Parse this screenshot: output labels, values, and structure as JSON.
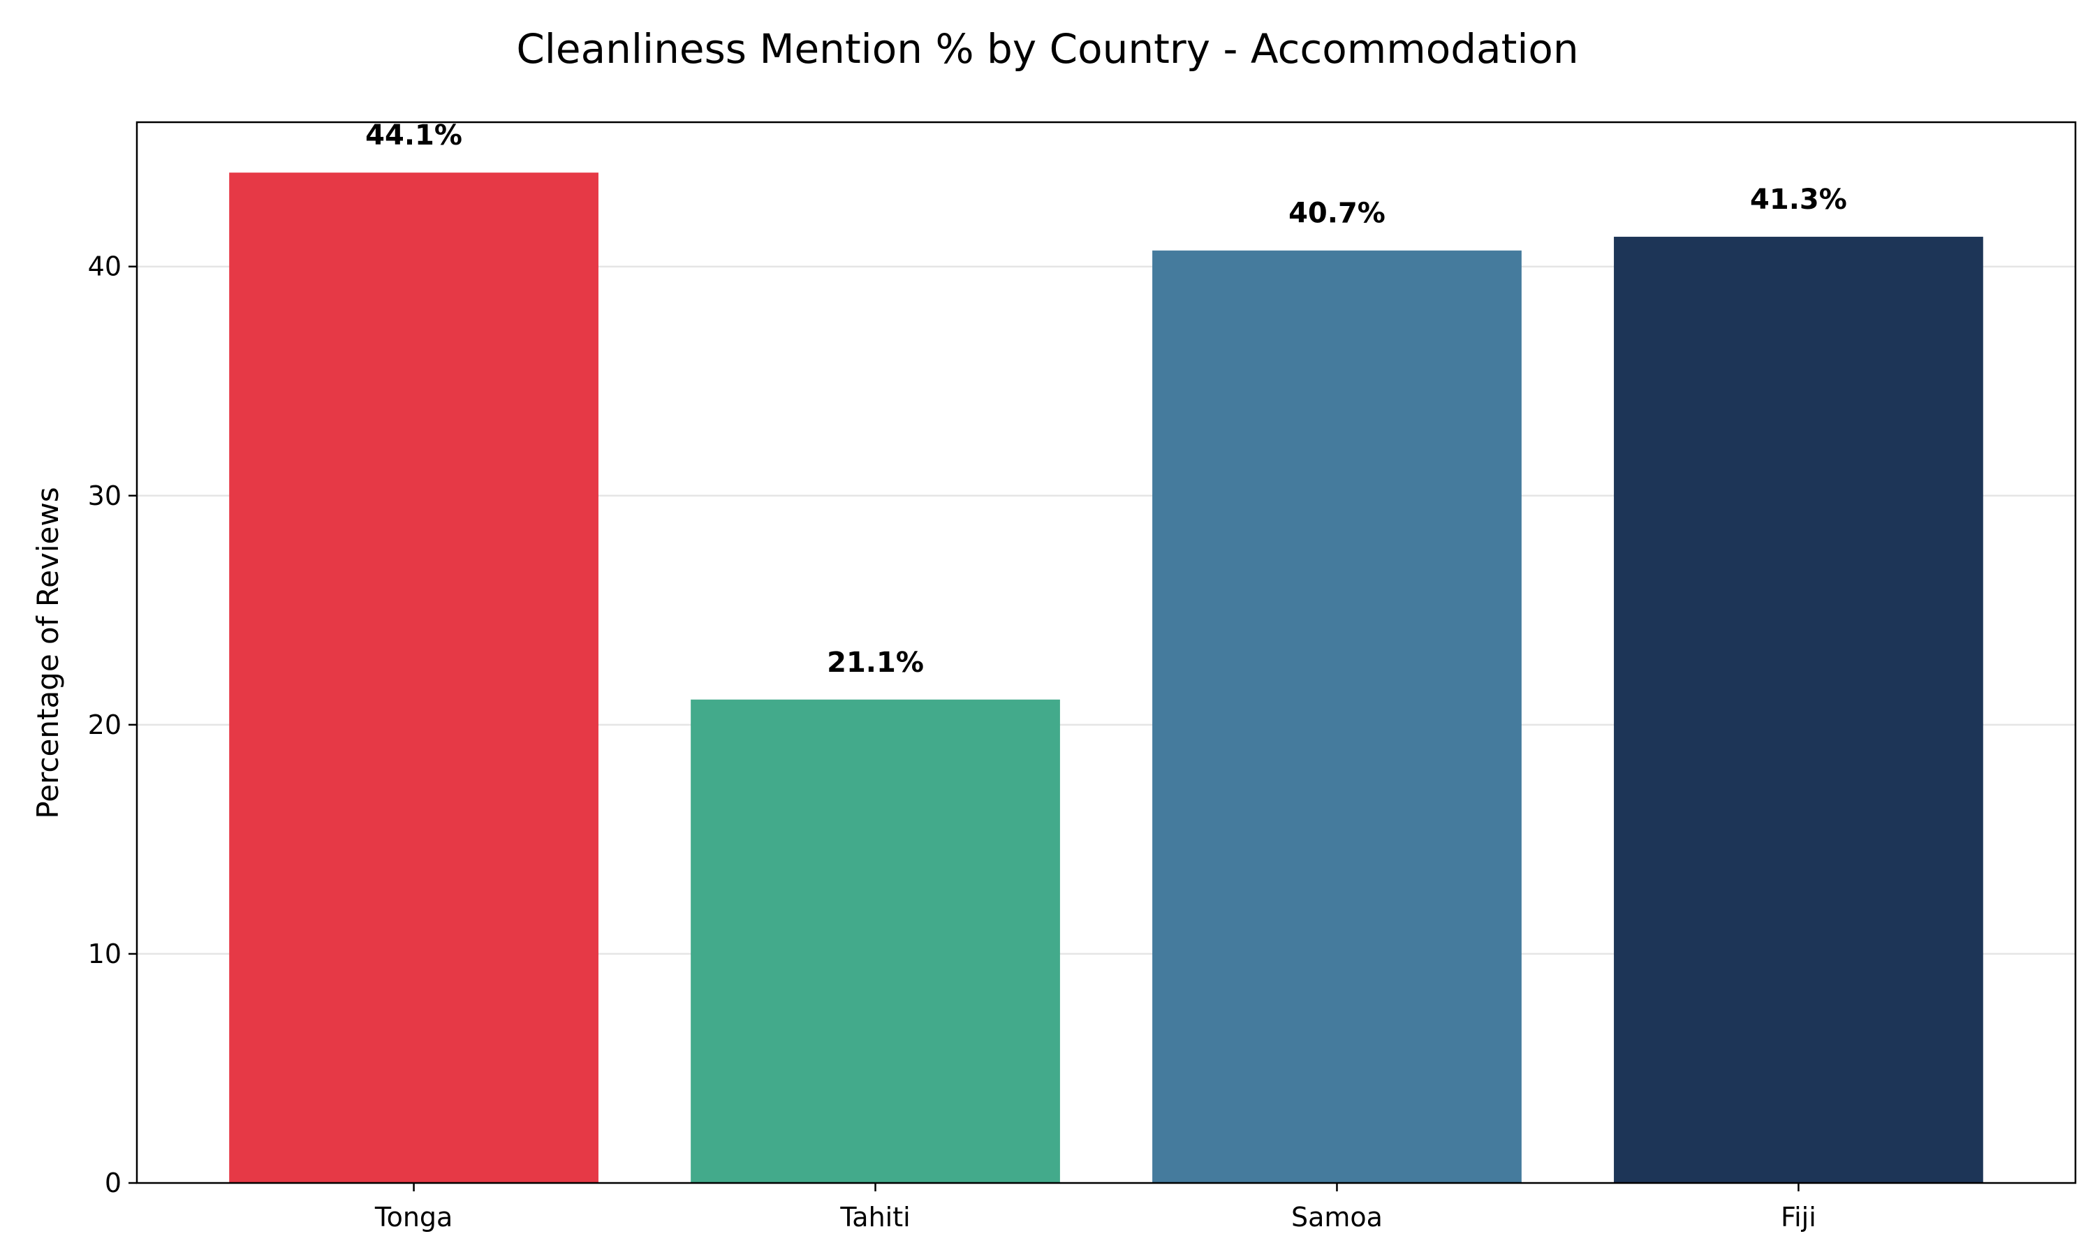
{
  "chart_data": {
    "type": "bar",
    "title": "Cleanliness Mention % by Country - Accommodation",
    "xlabel": "",
    "ylabel": "Percentage of Reviews",
    "categories": [
      "Tonga",
      "Tahiti",
      "Samoa",
      "Fiji"
    ],
    "values": [
      44.1,
      21.1,
      40.7,
      41.3
    ],
    "value_labels": [
      "44.1%",
      "21.1%",
      "40.7%",
      "41.3%"
    ],
    "colors": [
      "#e63946",
      "#43aa8b",
      "#457b9d",
      "#1d3557"
    ],
    "ylim": [
      0,
      46.3
    ],
    "yticks": [
      0,
      10,
      20,
      30,
      40
    ],
    "ytick_labels": [
      "0",
      "10",
      "20",
      "30",
      "40"
    ],
    "grid": "horizontal",
    "legend": "none"
  }
}
